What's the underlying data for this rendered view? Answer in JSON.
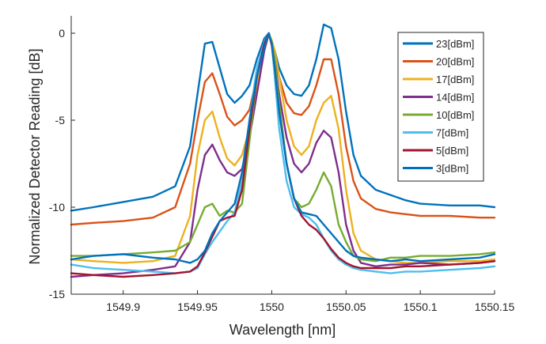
{
  "chart_data": {
    "type": "line",
    "title": "",
    "xlabel": "Wavelength [nm]",
    "ylabel": "Normalized Detector Reading [dB]",
    "xlim": [
      1549.865,
      1550.15
    ],
    "ylim": [
      -15,
      1.0
    ],
    "x_ticks": [
      {
        "value": 1549.9,
        "label": "1549.9"
      },
      {
        "value": 1549.95,
        "label": "1549.95"
      },
      {
        "value": 1550,
        "label": "1550"
      },
      {
        "value": 1550.05,
        "label": "1550.05"
      },
      {
        "value": 1550.1,
        "label": "1550.1"
      },
      {
        "value": 1550.15,
        "label": "1550.15"
      }
    ],
    "y_ticks": [
      {
        "value": 0,
        "label": "0"
      },
      {
        "value": -5,
        "label": "-5"
      },
      {
        "value": -10,
        "label": "-10"
      },
      {
        "value": -15,
        "label": "-15"
      }
    ],
    "grid": false,
    "legend_position": "top-right",
    "series": [
      {
        "name": "23[dBm]",
        "color": "#0072BD",
        "x": [
          1549.865,
          1549.88,
          1549.9,
          1549.92,
          1549.935,
          1549.945,
          1549.95,
          1549.955,
          1549.96,
          1549.965,
          1549.97,
          1549.975,
          1549.98,
          1549.985,
          1549.99,
          1549.995,
          1549.998,
          1550.0,
          1550.002,
          1550.005,
          1550.01,
          1550.015,
          1550.02,
          1550.025,
          1550.03,
          1550.035,
          1550.04,
          1550.045,
          1550.05,
          1550.055,
          1550.06,
          1550.07,
          1550.08,
          1550.09,
          1550.1,
          1550.12,
          1550.14,
          1550.15
        ],
        "y": [
          -10.2,
          -10.0,
          -9.7,
          -9.4,
          -8.8,
          -6.5,
          -3.5,
          -0.6,
          -0.5,
          -2.0,
          -3.5,
          -4.0,
          -3.6,
          -3.0,
          -1.5,
          -0.3,
          0.0,
          -0.5,
          -1.0,
          -2.0,
          -3.0,
          -3.5,
          -3.6,
          -3.0,
          -1.5,
          0.5,
          0.3,
          -1.5,
          -4.5,
          -7.0,
          -8.2,
          -9.0,
          -9.3,
          -9.6,
          -9.8,
          -9.9,
          -9.9,
          -10.0
        ]
      },
      {
        "name": "20[dBm]",
        "color": "#D95319",
        "x": [
          1549.865,
          1549.88,
          1549.9,
          1549.92,
          1549.935,
          1549.945,
          1549.95,
          1549.955,
          1549.96,
          1549.965,
          1549.97,
          1549.975,
          1549.98,
          1549.985,
          1549.99,
          1549.995,
          1549.998,
          1550.0,
          1550.002,
          1550.005,
          1550.01,
          1550.015,
          1550.02,
          1550.025,
          1550.03,
          1550.035,
          1550.04,
          1550.045,
          1550.05,
          1550.055,
          1550.06,
          1550.07,
          1550.08,
          1550.09,
          1550.1,
          1550.12,
          1550.14,
          1550.15
        ],
        "y": [
          -11.0,
          -10.9,
          -10.8,
          -10.6,
          -10.0,
          -7.5,
          -5.0,
          -2.8,
          -2.3,
          -3.5,
          -4.8,
          -5.3,
          -5.0,
          -4.4,
          -2.5,
          -0.8,
          0.0,
          -0.6,
          -1.2,
          -2.5,
          -4.0,
          -4.6,
          -4.7,
          -4.2,
          -3.0,
          -1.5,
          -1.5,
          -3.5,
          -6.5,
          -8.5,
          -9.5,
          -10.1,
          -10.3,
          -10.4,
          -10.5,
          -10.5,
          -10.6,
          -10.6
        ]
      },
      {
        "name": "17[dBm]",
        "color": "#EDB120",
        "x": [
          1549.865,
          1549.88,
          1549.9,
          1549.92,
          1549.935,
          1549.945,
          1549.95,
          1549.955,
          1549.96,
          1549.965,
          1549.97,
          1549.975,
          1549.98,
          1549.985,
          1549.99,
          1549.995,
          1549.998,
          1550.0,
          1550.002,
          1550.005,
          1550.01,
          1550.015,
          1550.02,
          1550.025,
          1550.03,
          1550.035,
          1550.04,
          1550.045,
          1550.05,
          1550.055,
          1550.06,
          1550.07,
          1550.08,
          1550.09,
          1550.1,
          1550.12,
          1550.14,
          1550.15
        ],
        "y": [
          -13.0,
          -13.1,
          -13.2,
          -13.1,
          -12.8,
          -10.5,
          -7.0,
          -5.0,
          -4.5,
          -6.0,
          -7.2,
          -7.6,
          -7.0,
          -5.5,
          -3.0,
          -1.0,
          -0.1,
          -0.4,
          -1.0,
          -2.5,
          -5.0,
          -6.5,
          -7.0,
          -6.5,
          -5.0,
          -4.0,
          -3.6,
          -5.5,
          -9.0,
          -11.5,
          -12.5,
          -13.0,
          -13.1,
          -13.2,
          -13.2,
          -13.1,
          -13.1,
          -13.0
        ]
      },
      {
        "name": "14[dBm]",
        "color": "#7E2F8E",
        "x": [
          1549.865,
          1549.88,
          1549.9,
          1549.92,
          1549.935,
          1549.945,
          1549.95,
          1549.955,
          1549.96,
          1549.965,
          1549.97,
          1549.975,
          1549.98,
          1549.985,
          1549.99,
          1549.995,
          1549.998,
          1550.0,
          1550.002,
          1550.005,
          1550.01,
          1550.015,
          1550.02,
          1550.025,
          1550.03,
          1550.035,
          1550.04,
          1550.045,
          1550.05,
          1550.055,
          1550.06,
          1550.07,
          1550.08,
          1550.09,
          1550.1,
          1550.12,
          1550.14,
          1550.15
        ],
        "y": [
          -14.0,
          -13.9,
          -13.8,
          -13.6,
          -13.4,
          -12.0,
          -9.0,
          -7.0,
          -6.4,
          -7.3,
          -8.0,
          -8.2,
          -7.8,
          -6.0,
          -3.5,
          -1.0,
          0.0,
          -0.5,
          -1.5,
          -3.5,
          -6.0,
          -7.5,
          -8.0,
          -7.5,
          -6.3,
          -5.6,
          -6.0,
          -8.0,
          -11.0,
          -12.5,
          -13.2,
          -13.4,
          -13.3,
          -13.3,
          -13.2,
          -13.3,
          -13.2,
          -13.1
        ]
      },
      {
        "name": "10[dBm]",
        "color": "#77AC30",
        "x": [
          1549.865,
          1549.88,
          1549.9,
          1549.92,
          1549.935,
          1549.945,
          1549.95,
          1549.955,
          1549.96,
          1549.965,
          1549.97,
          1549.975,
          1549.98,
          1549.985,
          1549.99,
          1549.995,
          1549.998,
          1550.0,
          1550.002,
          1550.005,
          1550.01,
          1550.015,
          1550.02,
          1550.025,
          1550.03,
          1550.035,
          1550.04,
          1550.045,
          1550.05,
          1550.055,
          1550.06,
          1550.07,
          1550.08,
          1550.09,
          1550.1,
          1550.12,
          1550.14,
          1550.15
        ],
        "y": [
          -12.8,
          -12.8,
          -12.7,
          -12.6,
          -12.5,
          -12.0,
          -11.0,
          -10.0,
          -9.8,
          -10.5,
          -10.2,
          -10.3,
          -9.8,
          -6.2,
          -2.5,
          -0.6,
          0.0,
          -0.5,
          -1.5,
          -4.0,
          -7.5,
          -9.5,
          -10.0,
          -9.8,
          -9.0,
          -8.0,
          -8.8,
          -11.0,
          -12.0,
          -12.8,
          -13.0,
          -13.1,
          -12.9,
          -12.9,
          -12.8,
          -12.8,
          -12.7,
          -12.6
        ]
      },
      {
        "name": "7[dBm]",
        "color": "#4DBEEE",
        "x": [
          1549.865,
          1549.88,
          1549.9,
          1549.92,
          1549.935,
          1549.945,
          1549.95,
          1549.955,
          1549.96,
          1549.965,
          1549.97,
          1549.975,
          1549.98,
          1549.985,
          1549.99,
          1549.995,
          1549.998,
          1550.0,
          1550.002,
          1550.005,
          1550.01,
          1550.015,
          1550.02,
          1550.025,
          1550.03,
          1550.035,
          1550.04,
          1550.045,
          1550.05,
          1550.055,
          1550.06,
          1550.07,
          1550.08,
          1550.09,
          1550.1,
          1550.12,
          1550.14,
          1550.15
        ],
        "y": [
          -13.3,
          -13.5,
          -13.6,
          -13.7,
          -13.8,
          -13.7,
          -13.5,
          -12.7,
          -12.0,
          -11.4,
          -10.8,
          -10.3,
          -8.5,
          -5.0,
          -2.0,
          -0.5,
          0.0,
          -0.6,
          -2.5,
          -5.5,
          -8.5,
          -10.0,
          -10.4,
          -10.6,
          -11.0,
          -11.8,
          -12.5,
          -13.0,
          -13.3,
          -13.5,
          -13.6,
          -13.7,
          -13.8,
          -13.7,
          -13.7,
          -13.6,
          -13.5,
          -13.4
        ]
      },
      {
        "name": "5[dBm]",
        "color": "#A2142F",
        "x": [
          1549.865,
          1549.88,
          1549.9,
          1549.92,
          1549.935,
          1549.945,
          1549.95,
          1549.955,
          1549.96,
          1549.965,
          1549.97,
          1549.975,
          1549.98,
          1549.985,
          1549.99,
          1549.995,
          1549.998,
          1550.0,
          1550.002,
          1550.005,
          1550.01,
          1550.015,
          1550.02,
          1550.025,
          1550.03,
          1550.035,
          1550.04,
          1550.045,
          1550.05,
          1550.055,
          1550.06,
          1550.07,
          1550.08,
          1550.09,
          1550.1,
          1550.12,
          1550.14,
          1550.15
        ],
        "y": [
          -13.8,
          -13.9,
          -14.0,
          -13.9,
          -13.8,
          -13.7,
          -13.4,
          -12.6,
          -11.7,
          -10.8,
          -10.6,
          -10.5,
          -9.0,
          -5.5,
          -2.5,
          -0.6,
          0.0,
          -0.7,
          -2.0,
          -4.5,
          -7.5,
          -9.5,
          -10.5,
          -11.0,
          -11.3,
          -11.8,
          -12.4,
          -12.9,
          -13.2,
          -13.4,
          -13.5,
          -13.5,
          -13.5,
          -13.4,
          -13.4,
          -13.3,
          -13.2,
          -13.1
        ]
      },
      {
        "name": "3[dBm]",
        "color": "#0072BD",
        "x": [
          1549.865,
          1549.88,
          1549.9,
          1549.92,
          1549.935,
          1549.945,
          1549.95,
          1549.955,
          1549.96,
          1549.965,
          1549.97,
          1549.975,
          1549.98,
          1549.985,
          1549.99,
          1549.995,
          1549.998,
          1550.0,
          1550.002,
          1550.005,
          1550.01,
          1550.015,
          1550.02,
          1550.025,
          1550.03,
          1550.035,
          1550.04,
          1550.045,
          1550.05,
          1550.055,
          1550.06,
          1550.07,
          1550.08,
          1550.09,
          1550.1,
          1550.12,
          1550.14,
          1550.15
        ],
        "y": [
          -13.0,
          -12.8,
          -12.7,
          -12.9,
          -13.0,
          -13.2,
          -13.0,
          -12.5,
          -11.5,
          -10.8,
          -10.3,
          -9.8,
          -8.0,
          -5.0,
          -2.5,
          -0.8,
          0.0,
          -0.6,
          -2.0,
          -4.5,
          -7.5,
          -9.5,
          -10.3,
          -10.4,
          -10.5,
          -11.0,
          -11.5,
          -12.0,
          -12.5,
          -12.8,
          -12.9,
          -13.0,
          -13.1,
          -13.0,
          -13.1,
          -13.0,
          -12.9,
          -12.7
        ]
      }
    ]
  }
}
